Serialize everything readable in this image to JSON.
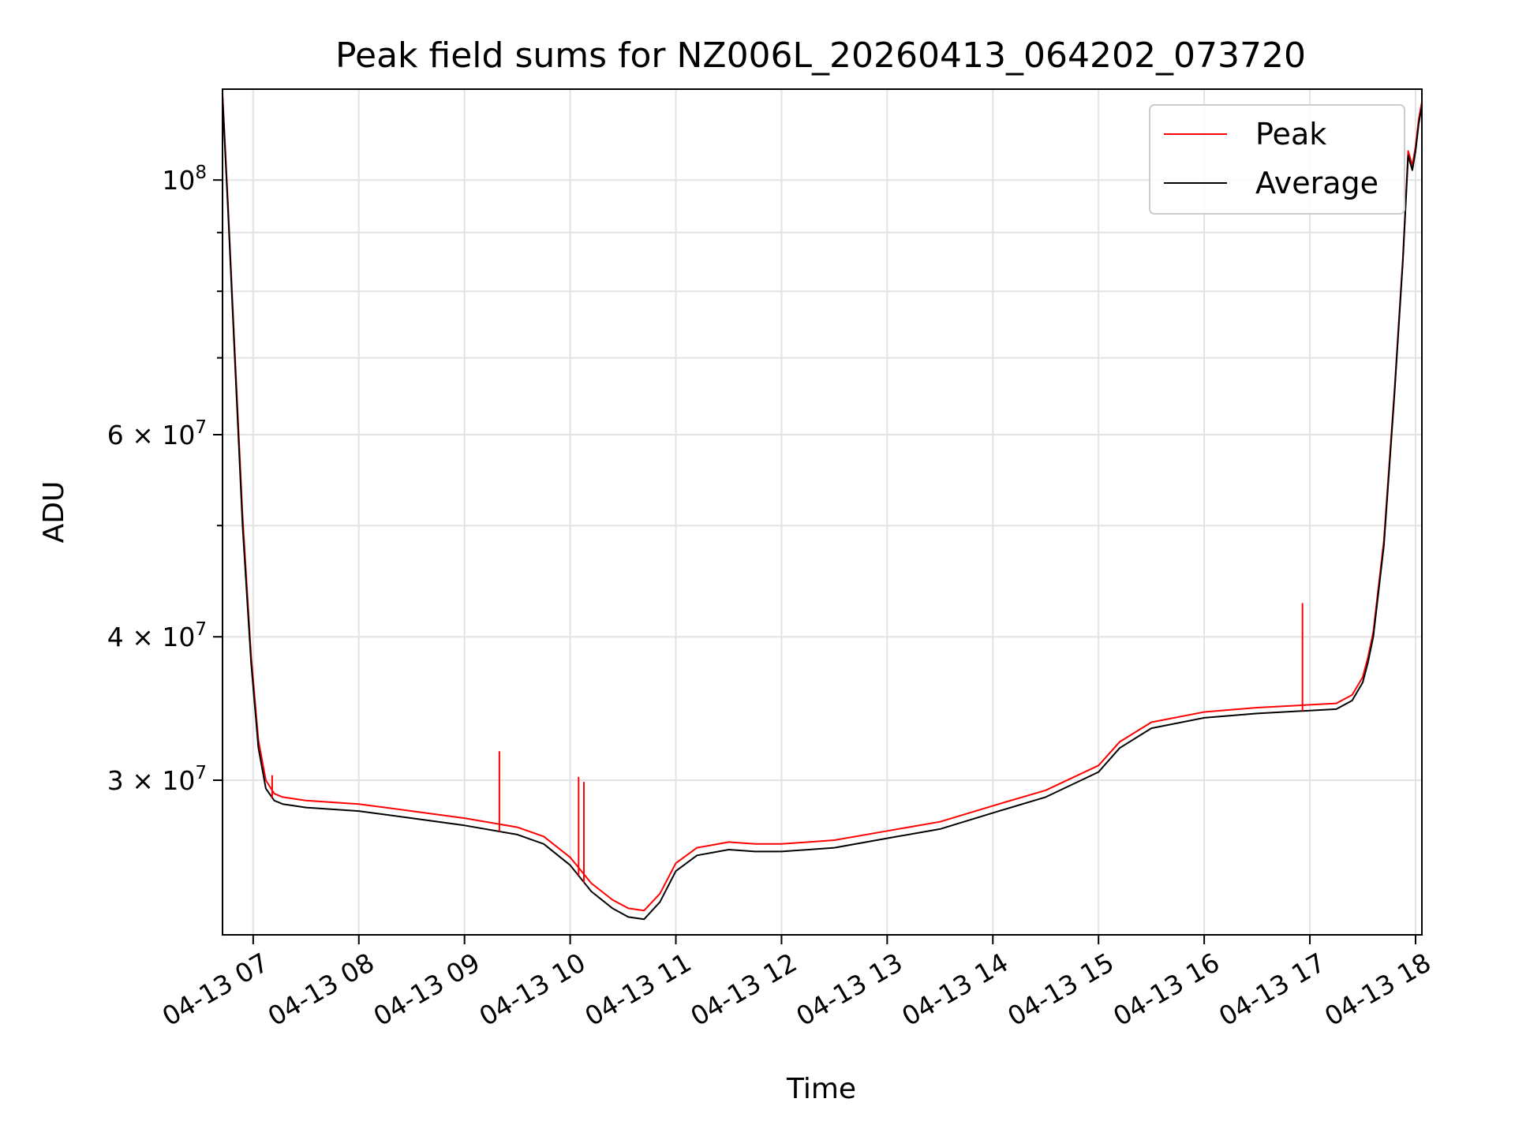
{
  "chart_data": {
    "type": "line",
    "title": "Peak field sums for NZ006L_20260413_064202_073720",
    "xlabel": "Time",
    "ylabel": "ADU",
    "yscale": "log",
    "xlim_hours": [
      6.71,
      18.06
    ],
    "ylim": [
      22000000,
      120000000
    ],
    "x_ticks": [
      {
        "hour": 7,
        "label": "04-13 07"
      },
      {
        "hour": 8,
        "label": "04-13 08"
      },
      {
        "hour": 9,
        "label": "04-13 09"
      },
      {
        "hour": 10,
        "label": "04-13 10"
      },
      {
        "hour": 11,
        "label": "04-13 11"
      },
      {
        "hour": 12,
        "label": "04-13 12"
      },
      {
        "hour": 13,
        "label": "04-13 13"
      },
      {
        "hour": 14,
        "label": "04-13 14"
      },
      {
        "hour": 15,
        "label": "04-13 15"
      },
      {
        "hour": 16,
        "label": "04-13 16"
      },
      {
        "hour": 17,
        "label": "04-13 17"
      },
      {
        "hour": 18,
        "label": "04-13 18"
      }
    ],
    "y_major_ticks": [
      {
        "value": 30000000,
        "mantissa": "3",
        "exponent": "7",
        "label": "3 × 10^7"
      },
      {
        "value": 40000000,
        "mantissa": "4",
        "exponent": "7",
        "label": "4 × 10^7"
      },
      {
        "value": 60000000,
        "mantissa": "6",
        "exponent": "7",
        "label": "6 × 10^7"
      },
      {
        "value": 100000000,
        "mantissa": "10",
        "exponent": "8",
        "label": "10^8"
      }
    ],
    "y_minor_ticks": [
      50000000,
      70000000,
      80000000,
      90000000
    ],
    "legend": {
      "location": "upper right",
      "entries": [
        {
          "label": "Peak",
          "color": "#ff0000"
        },
        {
          "label": "Average",
          "color": "#000000"
        }
      ]
    },
    "series": [
      {
        "name": "Average",
        "color": "#000000",
        "hours": [
          6.71,
          6.76,
          6.82,
          6.9,
          6.98,
          7.05,
          7.12,
          7.2,
          7.28,
          7.5,
          8.0,
          8.5,
          9.0,
          9.5,
          9.75,
          10.0,
          10.2,
          10.4,
          10.55,
          10.7,
          10.85,
          11.0,
          11.2,
          11.5,
          11.75,
          12.0,
          12.5,
          13.0,
          13.5,
          14.0,
          14.5,
          15.0,
          15.2,
          15.5,
          16.0,
          16.5,
          17.0,
          17.25,
          17.4,
          17.5,
          17.55,
          17.6,
          17.7,
          17.8,
          17.88,
          17.93,
          17.97,
          18.0,
          18.03,
          18.06
        ],
        "values": [
          118000000,
          95000000,
          72000000,
          50000000,
          38000000,
          32000000,
          29500000,
          28800000,
          28600000,
          28400000,
          28200000,
          27800000,
          27400000,
          26900000,
          26400000,
          25300000,
          24000000,
          23200000,
          22800000,
          22700000,
          23500000,
          25000000,
          25800000,
          26100000,
          26000000,
          26000000,
          26200000,
          26700000,
          27200000,
          28100000,
          29000000,
          30500000,
          32000000,
          33300000,
          34000000,
          34300000,
          34500000,
          34600000,
          35200000,
          36500000,
          38000000,
          40000000,
          48000000,
          65000000,
          85000000,
          105000000,
          102000000,
          106000000,
          112000000,
          116000000
        ]
      },
      {
        "name": "Peak",
        "color": "#ff0000",
        "hours": [
          6.71,
          6.76,
          6.82,
          6.9,
          6.98,
          7.05,
          7.12,
          7.2,
          7.28,
          7.5,
          8.0,
          8.5,
          9.0,
          9.5,
          9.75,
          10.0,
          10.2,
          10.4,
          10.55,
          10.7,
          10.85,
          11.0,
          11.2,
          11.5,
          11.75,
          12.0,
          12.5,
          13.0,
          13.5,
          14.0,
          14.5,
          15.0,
          15.2,
          15.5,
          16.0,
          16.5,
          17.0,
          17.25,
          17.4,
          17.5,
          17.55,
          17.6,
          17.7,
          17.8,
          17.88,
          17.93,
          17.97,
          18.0,
          18.03,
          18.06
        ],
        "values": [
          119000000,
          96000000,
          73000000,
          51000000,
          38500000,
          32500000,
          30000000,
          29200000,
          29000000,
          28800000,
          28600000,
          28200000,
          27800000,
          27300000,
          26800000,
          25700000,
          24400000,
          23600000,
          23200000,
          23100000,
          23900000,
          25400000,
          26200000,
          26500000,
          26400000,
          26400000,
          26600000,
          27100000,
          27600000,
          28500000,
          29400000,
          30900000,
          32400000,
          33700000,
          34400000,
          34700000,
          34900000,
          35000000,
          35600000,
          36900000,
          38400000,
          40400000,
          48500000,
          65500000,
          85500000,
          106000000,
          103000000,
          107000000,
          113000000,
          117000000
        ]
      }
    ],
    "peak_spikes": [
      {
        "hour": 7.18,
        "value": 30300000
      },
      {
        "hour": 9.33,
        "value": 31800000
      },
      {
        "hour": 10.08,
        "value": 30200000
      },
      {
        "hour": 10.13,
        "value": 29900000
      },
      {
        "hour": 16.93,
        "value": 42800000
      }
    ]
  }
}
